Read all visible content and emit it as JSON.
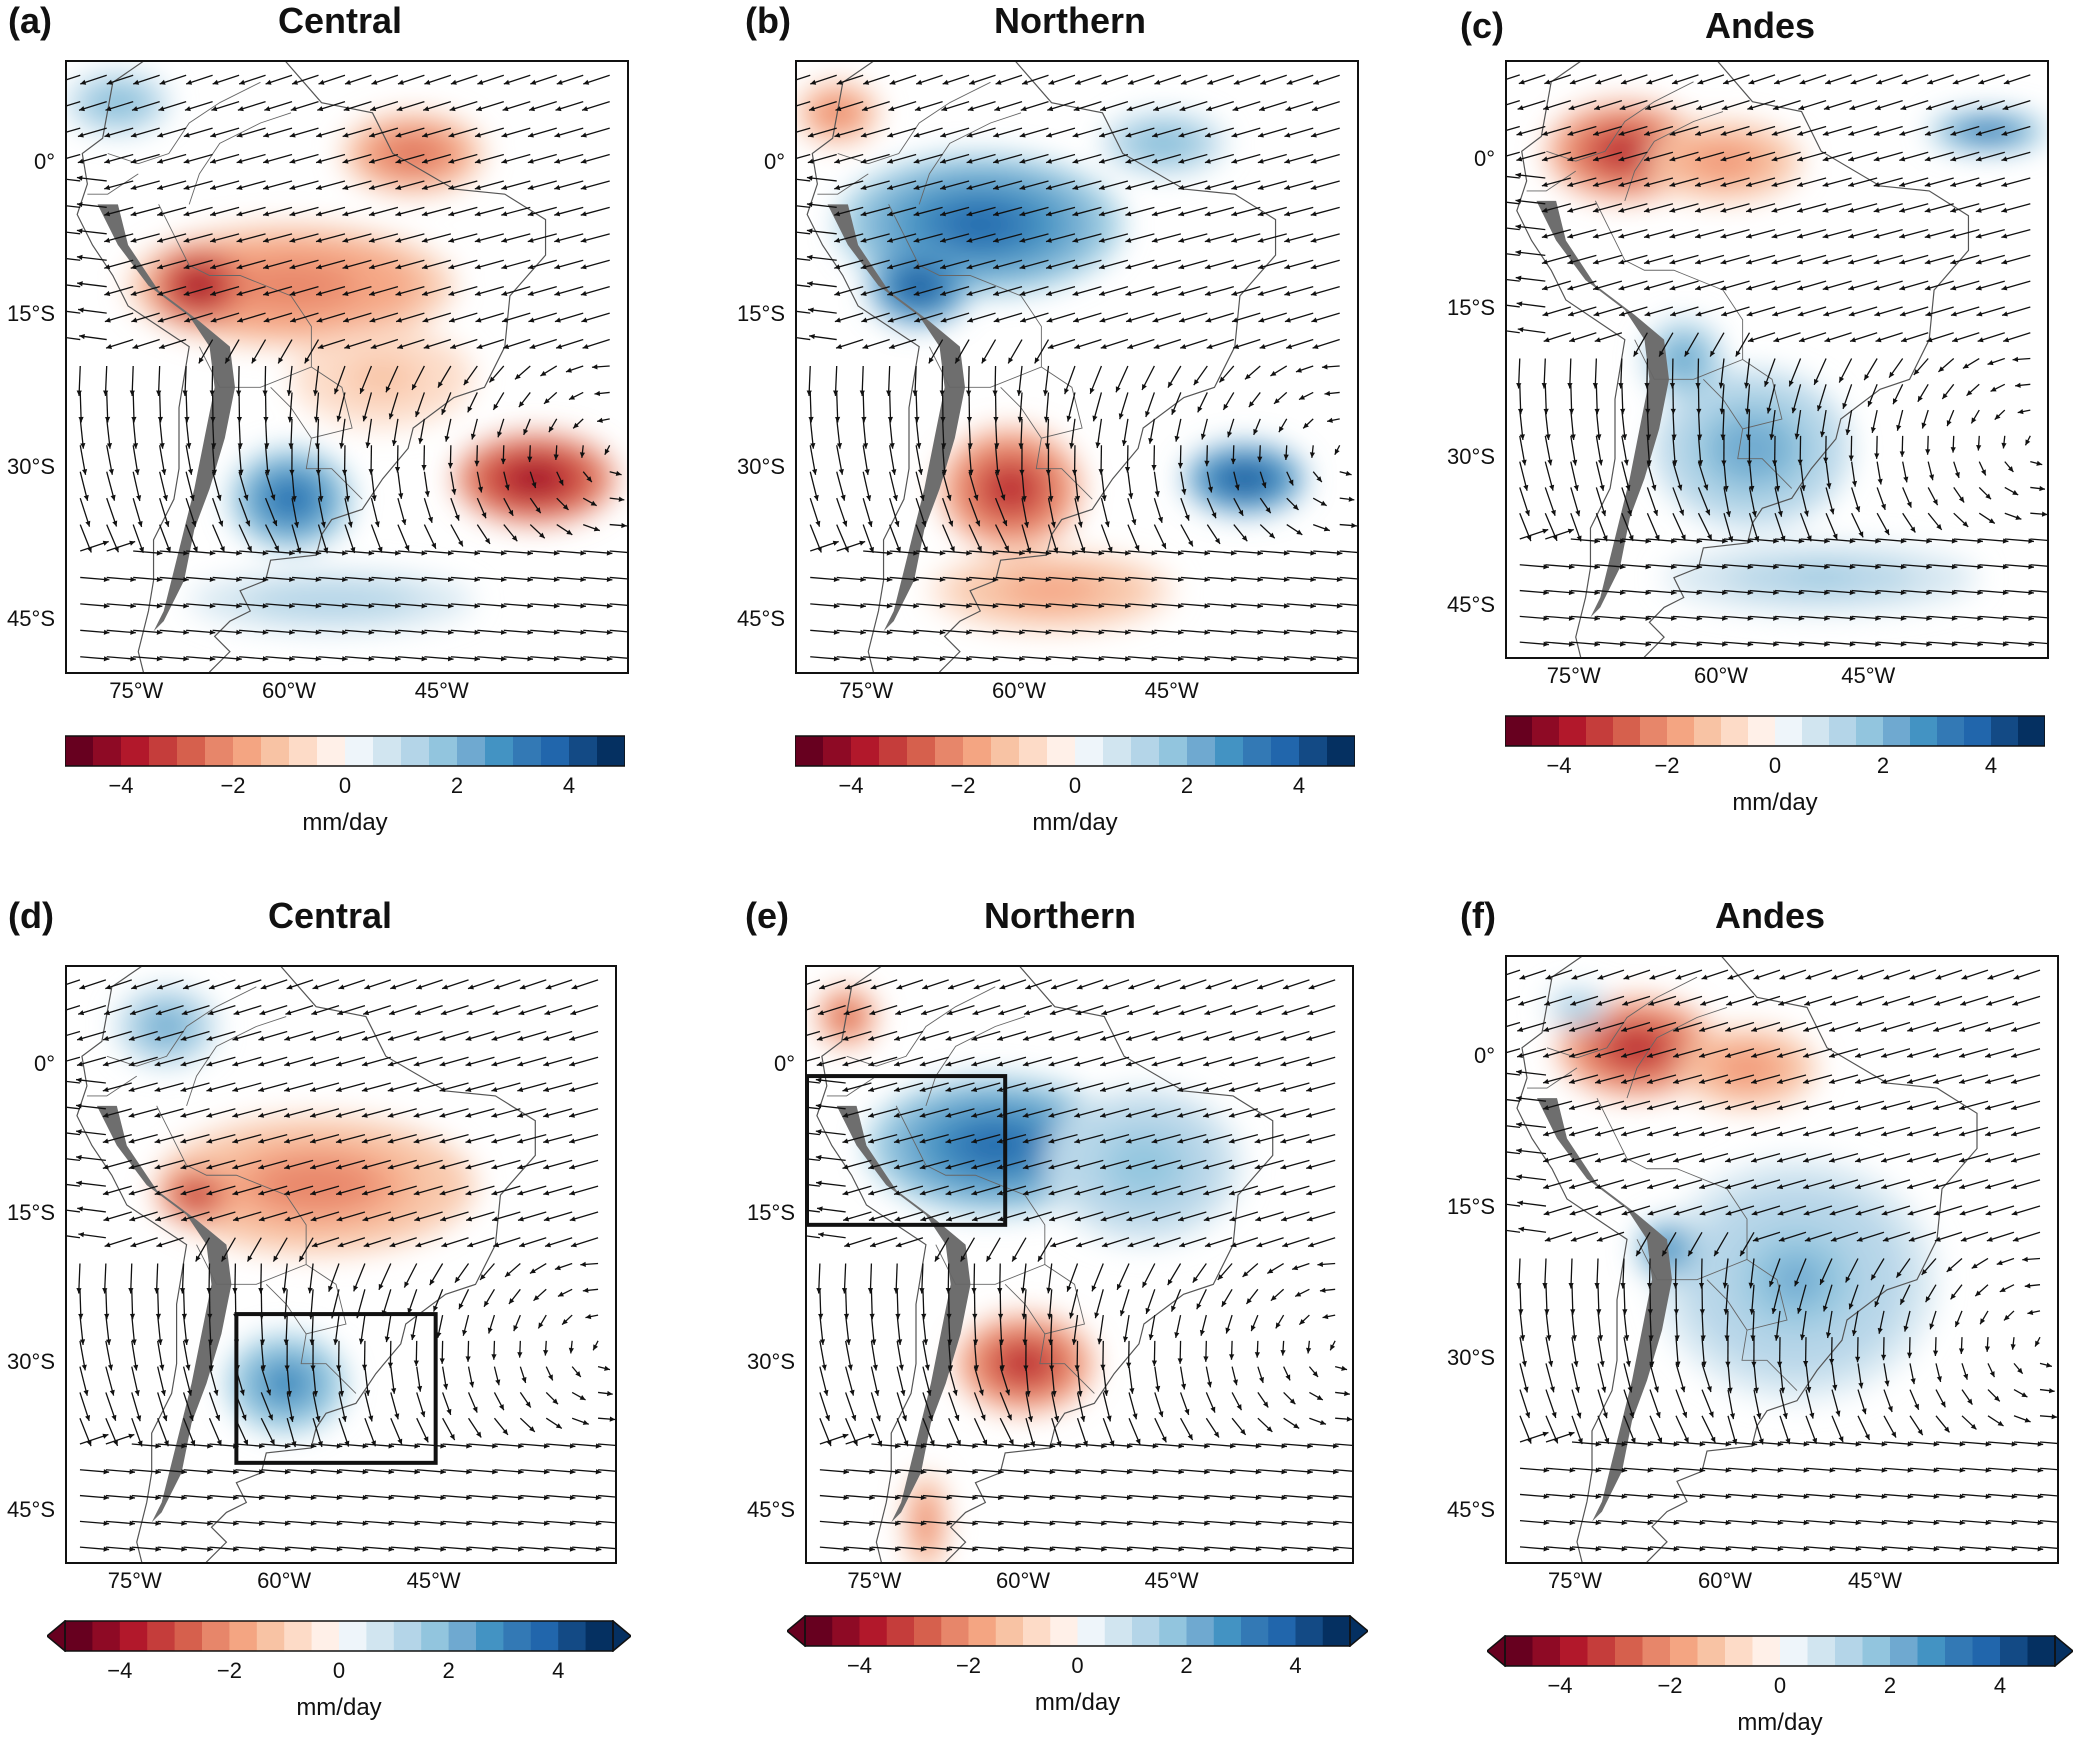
{
  "figure": {
    "colorbar_colors": [
      "#67001f",
      "#8e0a25",
      "#b2182b",
      "#c53d3b",
      "#d6604d",
      "#e7866a",
      "#f4a582",
      "#f8c3a4",
      "#fddbc7",
      "#fff0e8",
      "#eef5fa",
      "#d1e5f0",
      "#b4d5e8",
      "#92c5de",
      "#6fa9d0",
      "#4393c3",
      "#3379b5",
      "#2166ac",
      "#134a85",
      "#053061"
    ],
    "colorbar_ticks": [
      "−4",
      "−2",
      "0",
      "2",
      "4"
    ],
    "colorbar_tick_values": [
      -4,
      -2,
      0,
      2,
      4
    ],
    "colorbar_range": [
      -5,
      5
    ],
    "units": "mm/day",
    "lat_labels": [
      "0°",
      "15°S",
      "30°S",
      "45°S"
    ],
    "lat_values": [
      0,
      -15,
      -30,
      -45
    ],
    "lon_labels": [
      "75°W",
      "60°W",
      "45°W"
    ],
    "lon_values": [
      -75,
      -60,
      -45
    ],
    "extent": {
      "lon": [
        -82,
        -27
      ],
      "lat": [
        -50,
        10
      ]
    },
    "vector_grid_step_deg": 2.6
  },
  "panels": [
    {
      "id": "a",
      "letter": "(a)",
      "title": "Central",
      "extend": false,
      "box": null,
      "anoms": [
        {
          "lon": -60,
          "lat": -12,
          "a": -2.5,
          "rx": 16,
          "ry": 6
        },
        {
          "lon": -69,
          "lat": -12,
          "a": -4.2,
          "rx": 5,
          "ry": 4
        },
        {
          "lon": -48,
          "lat": 1,
          "a": -2.8,
          "rx": 7,
          "ry": 4
        },
        {
          "lon": -36,
          "lat": -31,
          "a": -4.2,
          "rx": 8,
          "ry": 4.5
        },
        {
          "lon": -60,
          "lat": -33,
          "a": 3.8,
          "rx": 6,
          "ry": 5
        },
        {
          "lon": -56,
          "lat": -43,
          "a": 1.4,
          "rx": 14,
          "ry": 3
        },
        {
          "lon": -77,
          "lat": 6,
          "a": 2.2,
          "rx": 5,
          "ry": 3
        },
        {
          "lon": -51,
          "lat": -21,
          "a": -1.3,
          "rx": 9,
          "ry": 5
        }
      ]
    },
    {
      "id": "b",
      "letter": "(b)",
      "title": "Northern",
      "extend": false,
      "box": null,
      "anoms": [
        {
          "lon": -64,
          "lat": -6,
          "a": 3.6,
          "rx": 14,
          "ry": 7
        },
        {
          "lon": -70,
          "lat": -12,
          "a": 4.2,
          "rx": 5,
          "ry": 4
        },
        {
          "lon": -46,
          "lat": 2,
          "a": 2.2,
          "rx": 6,
          "ry": 3
        },
        {
          "lon": -61,
          "lat": -32,
          "a": -4,
          "rx": 7,
          "ry": 6
        },
        {
          "lon": -57,
          "lat": -42,
          "a": -1.8,
          "rx": 12,
          "ry": 4
        },
        {
          "lon": -38,
          "lat": -31,
          "a": 4.3,
          "rx": 6,
          "ry": 3.5
        },
        {
          "lon": -78,
          "lat": 5,
          "a": -2.5,
          "rx": 4,
          "ry": 3
        }
      ]
    },
    {
      "id": "c",
      "letter": "(c)",
      "title": "Andes",
      "extend": false,
      "box": null,
      "anoms": [
        {
          "lon": -70,
          "lat": 1,
          "a": -3.8,
          "rx": 8,
          "ry": 5
        },
        {
          "lon": -60,
          "lat": 0,
          "a": -2.2,
          "rx": 8,
          "ry": 4
        },
        {
          "lon": -57,
          "lat": -29,
          "a": 2.4,
          "rx": 10,
          "ry": 8
        },
        {
          "lon": -50,
          "lat": -42,
          "a": 1.5,
          "rx": 16,
          "ry": 3.5
        },
        {
          "lon": -64,
          "lat": -20,
          "a": 2.6,
          "rx": 4,
          "ry": 4
        },
        {
          "lon": -33,
          "lat": 3,
          "a": 3.5,
          "rx": 6,
          "ry": 2
        }
      ]
    },
    {
      "id": "d",
      "letter": "(d)",
      "title": "Central",
      "extend": true,
      "box": {
        "lon0": -65,
        "lon1": -45,
        "lat0": -40,
        "lat1": -25
      },
      "anoms": [
        {
          "lon": -57,
          "lat": -12,
          "a": -2.4,
          "rx": 16,
          "ry": 7
        },
        {
          "lon": -69,
          "lat": -13,
          "a": -3.8,
          "rx": 4,
          "ry": 3
        },
        {
          "lon": -60,
          "lat": -32,
          "a": 3.2,
          "rx": 6,
          "ry": 5
        },
        {
          "lon": -72,
          "lat": 4,
          "a": 2.4,
          "rx": 5,
          "ry": 4
        }
      ]
    },
    {
      "id": "e",
      "letter": "(e)",
      "title": "Northern",
      "extend": true,
      "box": {
        "lon0": -82,
        "lon1": -62,
        "lat0": -16,
        "lat1": -1
      },
      "anoms": [
        {
          "lon": -63,
          "lat": -8,
          "a": 3.5,
          "rx": 13,
          "ry": 7
        },
        {
          "lon": -48,
          "lat": -10,
          "a": 1.8,
          "rx": 10,
          "ry": 8
        },
        {
          "lon": -60,
          "lat": -30,
          "a": -3.6,
          "rx": 7,
          "ry": 5
        },
        {
          "lon": -78,
          "lat": 5,
          "a": -3.2,
          "rx": 3,
          "ry": 3
        },
        {
          "lon": -70,
          "lat": -46,
          "a": -2.6,
          "rx": 2,
          "ry": 5
        }
      ]
    },
    {
      "id": "f",
      "letter": "(f)",
      "title": "Andes",
      "extend": true,
      "box": null,
      "anoms": [
        {
          "lon": -69,
          "lat": 1,
          "a": -3.8,
          "rx": 8,
          "ry": 5
        },
        {
          "lon": -58,
          "lat": -1,
          "a": -2.2,
          "rx": 7,
          "ry": 4
        },
        {
          "lon": -53,
          "lat": -22,
          "a": 2.0,
          "rx": 14,
          "ry": 12
        },
        {
          "lon": -66,
          "lat": -19,
          "a": 3.3,
          "rx": 3,
          "ry": 3
        },
        {
          "lon": -75,
          "lat": 5,
          "a": 1.8,
          "rx": 3,
          "ry": 2
        }
      ]
    }
  ]
}
